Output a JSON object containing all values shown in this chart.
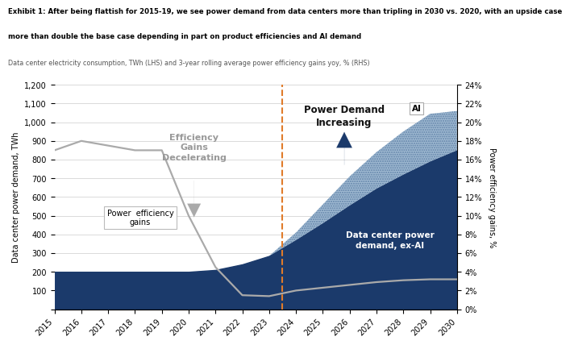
{
  "years": [
    2015,
    2016,
    2017,
    2018,
    2019,
    2020,
    2021,
    2022,
    2023,
    2024,
    2025,
    2026,
    2027,
    2028,
    2029,
    2030
  ],
  "ex_ai_demand": [
    200,
    200,
    200,
    200,
    200,
    200,
    210,
    240,
    285,
    370,
    460,
    555,
    645,
    720,
    790,
    850
  ],
  "ai_demand": [
    0,
    0,
    0,
    0,
    0,
    0,
    0,
    0,
    0,
    40,
    100,
    155,
    195,
    230,
    255,
    210
  ],
  "efficiency_gains_pct": [
    17,
    18,
    17.5,
    17,
    17,
    10,
    4.5,
    1.5,
    1.4,
    2.0,
    2.3,
    2.6,
    2.9,
    3.1,
    3.2,
    3.2
  ],
  "lhs_ylim": [
    0,
    1200
  ],
  "rhs_ylim": [
    0,
    24
  ],
  "lhs_yticks": [
    0,
    100,
    200,
    300,
    400,
    500,
    600,
    700,
    800,
    900,
    1000,
    1100,
    1200
  ],
  "rhs_yticks": [
    0,
    2,
    4,
    6,
    8,
    10,
    12,
    14,
    16,
    18,
    20,
    22,
    24
  ],
  "dark_blue": "#1b3a6b",
  "hatched_blue": "#6e8fb5",
  "gray_line": "#aaaaaa",
  "orange_dashed": "#e07b2a",
  "vline_x": 2023.5,
  "bg_color": "#ffffff",
  "title_line1": "Exhibit 1: After being flattish for 2015-19, we see power demand from data centers more than tripling in 2030 vs. 2020, with an upside case",
  "title_line2": "more than double the base case depending in part on product efficiencies and AI demand",
  "subtitle": "Data center electricity consumption, TWh (LHS) and 3-year rolling average power efficiency gains yoy, % (RHS)",
  "lhs_label": "Data center power demand, TWh",
  "rhs_label": "Power efficiency gains, %",
  "annotation_eff_gains": "Efficiency\nGains\nDecelerating",
  "annotation_power_demand": "Power Demand\nIncreasing",
  "annotation_ex_ai": "Data center power\ndemand, ex-AI",
  "annotation_eff_label": "Power  efficiency\ngains",
  "annotation_ai": "AI"
}
